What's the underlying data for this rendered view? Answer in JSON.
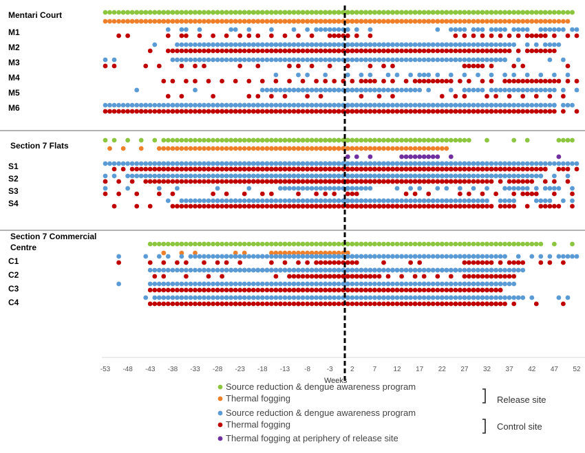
{
  "chart_data": {
    "type": "scatter",
    "xlabel": "Weeks",
    "x_ticks": [
      -53,
      -48,
      -43,
      -38,
      -33,
      -28,
      -23,
      -18,
      -13,
      -8,
      -3,
      2,
      7,
      12,
      17,
      22,
      27,
      32,
      37,
      42,
      47,
      52
    ],
    "xlim": [
      -53,
      52
    ],
    "release_marker_week": 0,
    "colors": {
      "release_source": "#8cc63f",
      "release_fogging": "#f07f2a",
      "control_source": "#5b9bd5",
      "control_fogging": "#c00000",
      "periphery_fogging": "#7030a0"
    },
    "legend": {
      "items": [
        {
          "key": "release_source",
          "label": "Source reduction & dengue awareness program"
        },
        {
          "key": "release_fogging",
          "label": "Thermal fogging"
        },
        {
          "key": "control_source",
          "label": "Source reduction & dengue awareness program"
        },
        {
          "key": "control_fogging",
          "label": "Thermal fogging"
        },
        {
          "key": "periphery_fogging",
          "label": "Thermal fogging at periphery of release site"
        }
      ],
      "groups": [
        {
          "label": "Release site",
          "items": [
            "release_source",
            "release_fogging"
          ]
        },
        {
          "label": "Control site",
          "items": [
            "control_source",
            "control_fogging"
          ]
        }
      ]
    },
    "sections": [
      {
        "title": "Mentari Court",
        "release": {
          "source": [
            "-53--51",
            "-49--48",
            "-46--45",
            "-40--23",
            "-21",
            "-18--12",
            "-10",
            "-8",
            "-6--1",
            "2",
            "4",
            "11",
            "15",
            "17",
            "20",
            "23",
            "26",
            "29",
            "33",
            "40",
            "49",
            "51"
          ],
          "fogging": [
            "-53--50",
            "-48--46",
            "-40--24",
            "-21",
            "-15--13",
            "-11--10",
            "-8",
            "-6--4",
            "-2--1"
          ]
        },
        "rows": [
          {
            "label": "M1",
            "source": [
              "-39",
              "-36",
              "-35",
              "-32",
              "-25",
              "-24",
              "-21",
              "-16",
              "-11",
              "-8",
              "-6--1",
              "1",
              "3",
              "6",
              "21",
              "24",
              "27--25",
              "29--31",
              "33--36",
              "38--41",
              "44--49",
              "51",
              "52"
            ],
            "fogging": [
              "-50",
              "-48",
              "-39",
              "-36",
              "-35",
              "-32",
              "-29",
              "-26",
              "-23",
              "-21",
              "-19",
              "-16",
              "-13",
              "-10",
              "-7",
              "-3--1",
              "3",
              "6",
              "25",
              "27",
              "29",
              "31",
              "33",
              "35",
              "37",
              "39",
              "41--45",
              "47",
              "50",
              "52"
            ]
          },
          {
            "label": "M2",
            "source": [
              "-42",
              "-37--34",
              "-31--27",
              "-22",
              "-20",
              "-18",
              "-16--11",
              "-7",
              "-3",
              "1",
              "7",
              "9",
              "23",
              "26",
              "30--33",
              "35--38",
              "41",
              "43",
              "45--48"
            ],
            "fogging": [
              "-43",
              "-39--37",
              "-34",
              "-30",
              "-25",
              "-23",
              "-20",
              "-16--12",
              "-1",
              "2",
              "4",
              "15",
              "17",
              "28",
              "31--36",
              "39",
              "41--47"
            ]
          },
          {
            "label": "M3",
            "source": [
              "-53",
              "-51",
              "-38--36",
              "-32",
              "-27",
              "-23",
              "-14",
              "-11",
              "-7",
              "-5",
              "-3",
              "3",
              "5",
              "8",
              "25",
              "28",
              "30",
              "34",
              "36",
              "39",
              "46",
              "49"
            ],
            "fogging": [
              "-53",
              "-51",
              "-44",
              "-41",
              "-36",
              "-33",
              "-31",
              "-23",
              "-19",
              "-12",
              "-10",
              "-7",
              "-3",
              "1",
              "6",
              "9",
              "11",
              "27--31",
              "33",
              "38",
              "40",
              "50"
            ]
          },
          {
            "label": "M4",
            "source": [
              "-15",
              "-10",
              "-8",
              "-4",
              "1",
              "4",
              "6",
              "10",
              "12",
              "15",
              "17--19",
              "21",
              "24",
              "27",
              "30",
              "33",
              "36",
              "38",
              "41",
              "44",
              "47",
              "50"
            ],
            "fogging": [
              "-40",
              "-38",
              "-35",
              "-33",
              "-30",
              "-27",
              "-24",
              "-21",
              "-18",
              "-15",
              "-12",
              "-9",
              "-6",
              "-4",
              "-2",
              "0",
              "2",
              "4--7",
              "9",
              "11",
              "14",
              "16--24",
              "26",
              "28",
              "31",
              "33",
              "36--48",
              "50",
              "52"
            ]
          },
          {
            "label": "M5",
            "source": [
              "-46",
              "-33",
              "-18--16",
              "-12--9",
              "-6",
              "2--4",
              "8",
              "15",
              "17",
              "19",
              "24",
              "27--31",
              "33--47",
              "49",
              "52"
            ],
            "fogging": [
              "-39",
              "-36",
              "-29",
              "-21",
              "-19",
              "-16",
              "-13",
              "-8",
              "-5",
              "4",
              "8",
              "11",
              "22",
              "25",
              "27",
              "32",
              "34",
              "37",
              "40",
              "43",
              "46",
              "49"
            ]
          },
          {
            "label": "M6",
            "source": [
              "-53--47",
              "-44",
              "-38--33",
              "-28",
              "-23",
              "-19",
              "-14",
              "-10",
              "-6",
              "-4--2",
              "0--9",
              "12",
              "14",
              "17",
              "20",
              "22",
              "25",
              "28",
              "31",
              "33--38",
              "41",
              "44",
              "47",
              "49--51"
            ],
            "fogging": [
              "-53--47",
              "-45",
              "-41",
              "-38--33",
              "-29",
              "-27",
              "-24",
              "-22",
              "-19",
              "-16",
              "-13",
              "-10",
              "-7",
              "-4--1",
              "1--7",
              "10",
              "13",
              "16",
              "19",
              "22",
              "25",
              "28--30",
              "33",
              "35--40",
              "43",
              "46",
              "49",
              "52"
            ]
          }
        ]
      },
      {
        "title": "Section 7 Flats",
        "release": {
          "source": [
            "-53",
            "-51",
            "-48",
            "-45",
            "-42",
            "-40--28",
            "-26--17",
            "-13",
            "-11--3",
            "-1",
            "1",
            "15--20",
            "23",
            "26",
            "32",
            "38",
            "41",
            "48--51"
          ],
          "fogging": [
            "-52",
            "-49",
            "-45",
            "-41--23",
            "-17--8",
            "-5--3"
          ]
        },
        "periphery": [
          "1",
          "3",
          "6",
          "13--21",
          "24",
          "48"
        ],
        "rows": [
          {
            "label": "S1",
            "source": [
              "-53--46",
              "-43--33",
              "-30",
              "-28--24",
              "-21",
              "-18",
              "-14--9",
              "-6",
              "-3--1",
              "1--6",
              "9--12",
              "15--22",
              "24",
              "27--31",
              "35--38",
              "42",
              "44",
              "47--52"
            ],
            "fogging": [
              "-51",
              "-49",
              "-47--45",
              "-42--37",
              "-35--24",
              "-22--20",
              "-17",
              "-15",
              "-12",
              "-10",
              "-7",
              "-5",
              "-2--1",
              "2",
              "5",
              "7",
              "10",
              "12--28",
              "31",
              "33",
              "35",
              "38",
              "40",
              "42",
              "45",
              "48--50",
              "52"
            ]
          },
          {
            "label": "S2",
            "source": [
              "-53",
              "-51",
              "-48--44",
              "-40",
              "-34",
              "-30--28",
              "-24",
              "-21",
              "-18--16",
              "-13--10",
              "-8",
              "-6",
              "-3--1",
              "1--5",
              "8",
              "10",
              "12",
              "15--23",
              "26--29",
              "32--38",
              "41",
              "44",
              "47",
              "50"
            ],
            "fogging": [
              "-53",
              "-50",
              "-47",
              "-44--27",
              "-24--19",
              "-16--13",
              "-11",
              "-9",
              "-6",
              "-4--2",
              "0--8",
              "11",
              "13",
              "16--33",
              "35",
              "37--42",
              "45",
              "47",
              "50"
            ]
          },
          {
            "label": "S3",
            "source": [
              "-53",
              "-48",
              "-41",
              "-37",
              "-28",
              "-21",
              "-14--2",
              "1--6",
              "12",
              "15",
              "17",
              "21",
              "23",
              "26",
              "29",
              "32",
              "36--41",
              "43",
              "45--48",
              "51"
            ],
            "fogging": [
              "-53",
              "-50",
              "-46",
              "-41",
              "-38",
              "-29",
              "-26",
              "-22",
              "-18",
              "-16",
              "-10",
              "-6",
              "-4",
              "-2",
              "1--3",
              "14",
              "16",
              "19",
              "26",
              "28",
              "31",
              "34",
              "38",
              "40--43",
              "47",
              "51"
            ]
          },
          {
            "label": "S4",
            "source": [
              "-39",
              "-36--31",
              "-28",
              "-24",
              "-20",
              "-16",
              "-12",
              "-9--4",
              "-1",
              "2",
              "5",
              "9",
              "11",
              "18",
              "20",
              "23",
              "28",
              "32",
              "35--38",
              "43--46",
              "49",
              "51"
            ],
            "fogging": [
              "-51",
              "-46",
              "-43",
              "-38--31",
              "-26",
              "-23",
              "-21",
              "-18",
              "-15--12",
              "-9",
              "-6",
              "-3",
              "0",
              "2--4",
              "8",
              "10",
              "12",
              "14",
              "17",
              "19",
              "22",
              "26",
              "29--33",
              "35--38",
              "41",
              "44--48",
              "51"
            ]
          }
        ]
      },
      {
        "title": "Section 7 Commercial Centre",
        "release": {
          "source": [
            "-43--38",
            "-36",
            "-34",
            "-31",
            "-28",
            "-23",
            "-16--6",
            "-4",
            "7",
            "17",
            "20",
            "22",
            "27",
            "32",
            "34",
            "37--44",
            "47",
            "51"
          ],
          "fogging": [
            "-40",
            "-36",
            "-33",
            "-24",
            "-22",
            "-16--1"
          ]
        },
        "rows": [
          {
            "label": "C1",
            "source": [
              "-50",
              "-44",
              "-41",
              "-39",
              "-36",
              "-34--30",
              "-26",
              "-24",
              "-22",
              "-18",
              "-15",
              "-13--7",
              "-5--2",
              "9",
              "11",
              "13",
              "16",
              "18",
              "21",
              "26--36",
              "39",
              "42",
              "44",
              "46",
              "48--52"
            ],
            "fogging": [
              "-50",
              "-43",
              "-40",
              "-37",
              "-35",
              "-31",
              "-28",
              "-26",
              "-23",
              "-16",
              "-13",
              "-10",
              "-8",
              "-6--3",
              "9",
              "15",
              "17",
              "27--33",
              "35",
              "37--40",
              "44",
              "46",
              "49"
            ]
          },
          {
            "label": "C2",
            "source": [
              "-43--39",
              "-36",
              "-31",
              "-27--25",
              "-22",
              "-19",
              "-17--8",
              "-6--1",
              "1",
              "5",
              "8",
              "11",
              "15",
              "17",
              "22",
              "25",
              "28",
              "31",
              "33",
              "38",
              "40"
            ],
            "fogging": [
              "-42",
              "-40",
              "-35",
              "-30",
              "-27",
              "-15",
              "-12--8",
              "-6--4",
              "0",
              "4",
              "6",
              "10",
              "13",
              "16",
              "18",
              "21",
              "24",
              "27--38"
            ]
          },
          {
            "label": "C3",
            "source": [
              "-50",
              "-43--35",
              "-31",
              "-28",
              "-25",
              "-16",
              "-14",
              "-11",
              "-8",
              "-6",
              "-4",
              "-2",
              "1",
              "10",
              "13",
              "18",
              "21",
              "24",
              "27--38"
            ],
            "fogging": [
              "-43--35",
              "-31",
              "-28",
              "-25",
              "-21",
              "-15--13",
              "-10",
              "-5",
              "3",
              "11",
              "15",
              "17",
              "20",
              "24",
              "26",
              "28--35"
            ]
          },
          {
            "label": "C4",
            "source": [
              "-44",
              "-42--32",
              "-26",
              "-23",
              "-7",
              "-5",
              "-3",
              "1",
              "8--11",
              "14",
              "17",
              "19",
              "22",
              "24",
              "27--40",
              "42",
              "48",
              "50"
            ],
            "fogging": [
              "-43--34",
              "-30",
              "-27",
              "-24",
              "-22",
              "-14",
              "-10",
              "-5",
              "-3",
              "10",
              "13",
              "16",
              "19",
              "22",
              "25",
              "27--36",
              "38",
              "43",
              "49"
            ]
          }
        ]
      }
    ]
  }
}
